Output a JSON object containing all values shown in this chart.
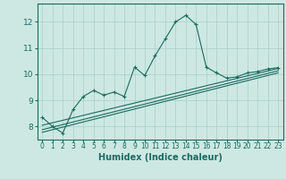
{
  "title": "",
  "xlabel": "Humidex (Indice chaleur)",
  "ylabel": "",
  "bg_color": "#cde8e2",
  "grid_color": "#a8cfc8",
  "line_color": "#1a6b62",
  "xlim": [
    -0.5,
    23.5
  ],
  "ylim": [
    7.5,
    12.7
  ],
  "yticks": [
    8,
    9,
    10,
    11,
    12
  ],
  "xticks": [
    0,
    1,
    2,
    3,
    4,
    5,
    6,
    7,
    8,
    9,
    10,
    11,
    12,
    13,
    14,
    15,
    16,
    17,
    18,
    19,
    20,
    21,
    22,
    23
  ],
  "main_line_x": [
    0,
    1,
    2,
    3,
    4,
    5,
    6,
    7,
    8,
    9,
    10,
    11,
    12,
    13,
    14,
    15,
    16,
    17,
    18,
    19,
    20,
    21,
    22,
    23
  ],
  "main_line_y": [
    8.35,
    8.0,
    7.75,
    8.65,
    9.15,
    9.38,
    9.2,
    9.32,
    9.15,
    10.27,
    9.95,
    10.7,
    11.35,
    12.0,
    12.25,
    11.9,
    10.27,
    10.05,
    9.85,
    9.9,
    10.05,
    10.1,
    10.2,
    10.25
  ],
  "line2_x": [
    0,
    23
  ],
  "line2_y": [
    8.05,
    10.22
  ],
  "line3_x": [
    0,
    23
  ],
  "line3_y": [
    7.78,
    10.05
  ],
  "line4_x": [
    0,
    23
  ],
  "line4_y": [
    7.88,
    10.13
  ]
}
